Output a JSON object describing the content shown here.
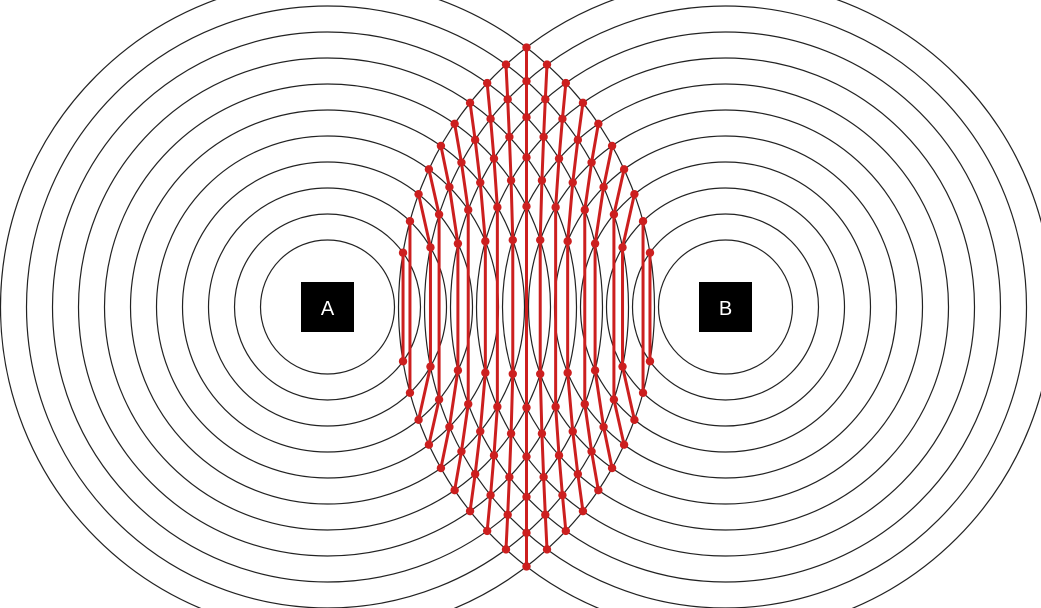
{
  "sources": [
    {
      "id": "A",
      "label": "A"
    },
    {
      "id": "B",
      "label": "B"
    }
  ],
  "ring_count": 11,
  "colors": {
    "ring": "#222222",
    "interference": "#cc1f1f",
    "source_box": "#000000",
    "source_text": "#ffffff",
    "background": "#ffffff"
  }
}
